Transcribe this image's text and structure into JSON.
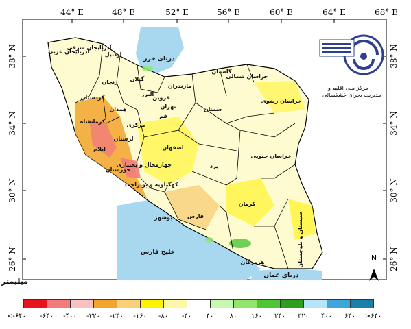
{
  "axes": {
    "lon_ticks": [
      "44° E",
      "48° E",
      "52° E",
      "56° E",
      "60° E",
      "64° E",
      "68° E"
    ],
    "lat_ticks": [
      "38° N",
      "34° N",
      "30° N",
      "26° N"
    ]
  },
  "provinces": [
    {
      "key": "azarbaijan_gharbi",
      "label": "آذربایجان غربی"
    },
    {
      "key": "azarbaijan_sharghi",
      "label": "آذربایجان شرقی"
    },
    {
      "key": "ardabil",
      "label": "اردبیل"
    },
    {
      "key": "zanjan",
      "label": "زنجان"
    },
    {
      "key": "gilan",
      "label": "گیلان"
    },
    {
      "key": "mazandaran",
      "label": "مازندران"
    },
    {
      "key": "golestan",
      "label": "گلستان"
    },
    {
      "key": "khorasan_shomali",
      "label": "خراسان شمالی"
    },
    {
      "key": "khorasan_razavi",
      "label": "خراسان رضوی"
    },
    {
      "key": "khorasan_jonubi",
      "label": "خراسان جنوبی"
    },
    {
      "key": "semnan",
      "label": "سمنان"
    },
    {
      "key": "tehran",
      "label": "تهران"
    },
    {
      "key": "alborz",
      "label": "البرز"
    },
    {
      "key": "qazvin",
      "label": "قزوین"
    },
    {
      "key": "qom",
      "label": "قم"
    },
    {
      "key": "markazi",
      "label": "مرکزی"
    },
    {
      "key": "hamedan",
      "label": "همدان"
    },
    {
      "key": "kurdistan",
      "label": "کردستان"
    },
    {
      "key": "kermanshah",
      "label": "کرمانشاه"
    },
    {
      "key": "ilam",
      "label": "ایلام"
    },
    {
      "key": "lorestan",
      "label": "لرستان"
    },
    {
      "key": "khuzestan",
      "label": "خوزستان"
    },
    {
      "key": "isfahan",
      "label": "اصفهان"
    },
    {
      "key": "chaharmahal",
      "label": "چهارمحال و بختیاری"
    },
    {
      "key": "kohgiluyeh",
      "label": "کهگیلویه و بویراحمد"
    },
    {
      "key": "bushehr",
      "label": "بوشهر"
    },
    {
      "key": "fars",
      "label": "فارس"
    },
    {
      "key": "yazd",
      "label": "یزد"
    },
    {
      "key": "kerman",
      "label": "کرمان"
    },
    {
      "key": "hormozgan",
      "label": "هرمزگان"
    },
    {
      "key": "sistan",
      "label": "سیستان و بلوچستان"
    }
  ],
  "seas": {
    "caspian": "دریای خزر",
    "persian_gulf": "خلیج فارس",
    "oman": "دریای عمان"
  },
  "north_label": "N",
  "logo": {
    "line1": "مرکز ملی اقلیم و",
    "line2": "مدیریت بحران خشکسالی"
  },
  "unit_label": "میلیمتر",
  "legend": {
    "colors": [
      "#e8141b",
      "#f27b7b",
      "#f8c0c0",
      "#f2a52e",
      "#f8cf7a",
      "#fff200",
      "#fff7a8",
      "#ffffff",
      "#c8f7b0",
      "#8fe66b",
      "#4cc633",
      "#2e9e1e",
      "#b8e4f7",
      "#3ea6dc",
      "#1b7fa7"
    ],
    "labels": [
      "<-۶۴۰",
      "-۶۴۰",
      "-۴۰۰",
      "-۳۲۰",
      "-۲۴۰",
      "-۱۶۰",
      "-۸۰",
      "-۴۰",
      "۴۰",
      "۸۰",
      "۱۶۰",
      "۲۴۰",
      "۳۲۰",
      "۴۰۰",
      "۶۴۰",
      ">۶۴۰"
    ]
  }
}
